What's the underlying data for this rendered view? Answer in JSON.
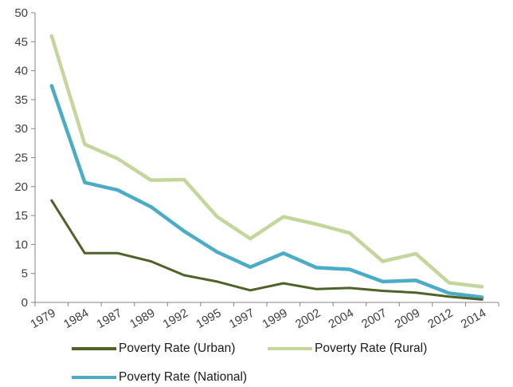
{
  "chart_data": {
    "type": "line",
    "title": "",
    "xlabel": "",
    "ylabel": "",
    "categories": [
      "1979",
      "1984",
      "1987",
      "1989",
      "1992",
      "1995",
      "1997",
      "1999",
      "2002",
      "2004",
      "2007",
      "2009",
      "2012",
      "2014"
    ],
    "ylim": [
      0,
      50
    ],
    "yticks": [
      "0",
      "5",
      "10",
      "15",
      "20",
      "25",
      "30",
      "35",
      "40",
      "45",
      "50"
    ],
    "grid": false,
    "legend_position": "bottom",
    "series": [
      {
        "name": "Poverty Rate (Urban)",
        "color": "#4f6228",
        "values": [
          17.6,
          8.5,
          8.5,
          7.1,
          4.7,
          3.6,
          2.1,
          3.3,
          2.3,
          2.5,
          2.0,
          1.7,
          1.0,
          0.5
        ]
      },
      {
        "name": "Poverty Rate (Rural)",
        "color": "#c3d69b",
        "values": [
          46.0,
          27.3,
          24.8,
          21.1,
          21.2,
          14.8,
          11.0,
          14.8,
          13.5,
          12.0,
          7.1,
          8.4,
          3.4,
          2.7
        ]
      },
      {
        "name": "Poverty Rate (National)",
        "color": "#4bacc6",
        "values": [
          37.4,
          20.7,
          19.4,
          16.5,
          12.3,
          8.7,
          6.1,
          8.5,
          6.0,
          5.7,
          3.6,
          3.8,
          1.6,
          0.9
        ]
      }
    ]
  }
}
